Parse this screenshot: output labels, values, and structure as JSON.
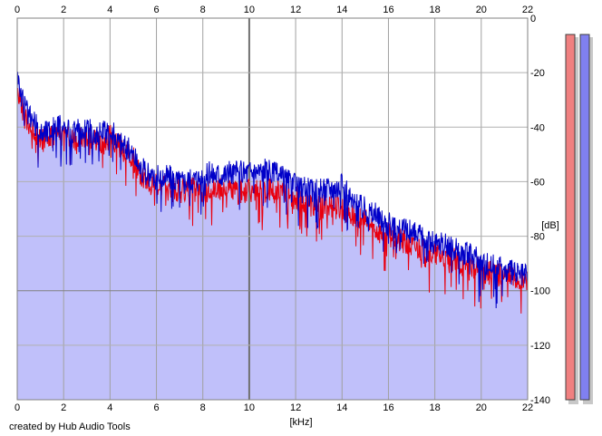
{
  "chart_data": {
    "type": "line",
    "x_unit_label": "[kHz]",
    "y_unit_label": "[dB]",
    "xlim": [
      0,
      22
    ],
    "ylim": [
      -140,
      0
    ],
    "x_ticks": [
      "0",
      "2",
      "4",
      "6",
      "8",
      "10",
      "12",
      "14",
      "16",
      "18",
      "20",
      "22"
    ],
    "y_ticks": [
      "0",
      "-20",
      "-40",
      "-60",
      "-80",
      "-100",
      "-120",
      "-140"
    ],
    "grid": true,
    "colors": {
      "left_channel": "#e8000f",
      "right_channel": "#0000c8",
      "fill": "#c0c0fa"
    },
    "series": [
      {
        "color": "#e8000f",
        "x": [
          0,
          0.2,
          0.5,
          1,
          1.5,
          2,
          2.5,
          3,
          3.5,
          4,
          4.5,
          5,
          5.3,
          5.6,
          6,
          6.5,
          7,
          7.5,
          8,
          8.5,
          9,
          9.5,
          10,
          10.5,
          11,
          11.5,
          12,
          12.5,
          13,
          13.5,
          14,
          14.5,
          15,
          15.5,
          16,
          16.5,
          17,
          17.5,
          18,
          18.5,
          19,
          19.5,
          20,
          20.5,
          21,
          21.5,
          22
        ],
        "y": [
          -25,
          -34,
          -40,
          -44,
          -44,
          -43,
          -45,
          -44,
          -46,
          -44,
          -48,
          -52,
          -58,
          -60,
          -62,
          -63,
          -64,
          -63,
          -64,
          -63,
          -63,
          -64,
          -64,
          -64,
          -64,
          -65,
          -66,
          -68,
          -70,
          -69,
          -70,
          -73,
          -75,
          -78,
          -80,
          -82,
          -84,
          -85,
          -87,
          -88,
          -90,
          -91,
          -93,
          -94,
          -95,
          -96,
          -97
        ]
      },
      {
        "color": "#0000c8",
        "x": [
          0,
          0.2,
          0.5,
          1,
          1.5,
          2,
          2.5,
          3,
          3.5,
          4,
          4.5,
          5,
          5.3,
          5.6,
          6,
          6.5,
          7,
          7.5,
          8,
          8.5,
          9,
          9.5,
          10,
          10.5,
          11,
          11.5,
          12,
          12.5,
          13,
          13.5,
          14,
          14.5,
          15,
          15.5,
          16,
          16.5,
          17,
          17.5,
          18,
          18.5,
          19,
          19.5,
          20,
          20.5,
          21,
          21.5,
          22
        ],
        "y": [
          -20,
          -30,
          -36,
          -42,
          -41,
          -40,
          -42,
          -41,
          -43,
          -42,
          -46,
          -50,
          -55,
          -58,
          -59,
          -58,
          -60,
          -59,
          -58,
          -57,
          -57,
          -57,
          -56,
          -56,
          -57,
          -59,
          -62,
          -63,
          -64,
          -62,
          -62,
          -68,
          -70,
          -73,
          -76,
          -78,
          -79,
          -81,
          -83,
          -84,
          -86,
          -87,
          -90,
          -91,
          -93,
          -94,
          -95
        ]
      }
    ],
    "level_meters": [
      {
        "color": "#f08080",
        "level_db": -6
      },
      {
        "color": "#8080f0",
        "level_db": -6
      }
    ]
  },
  "credit": "created by Hub Audio Tools"
}
